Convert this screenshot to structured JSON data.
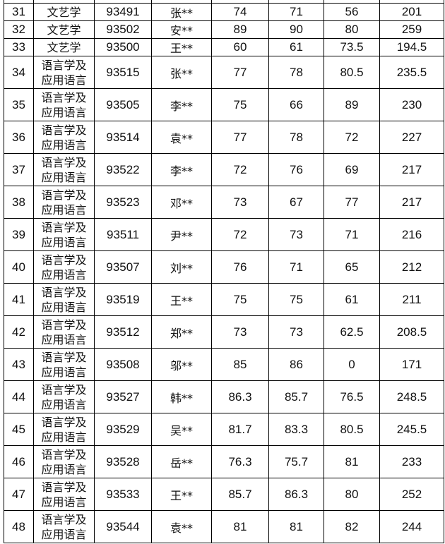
{
  "rows": [
    {
      "no": "31",
      "major": "文艺学",
      "id": "93491",
      "name": "张**",
      "s1": "74",
      "s2": "71",
      "s3": "56",
      "total": "201"
    },
    {
      "no": "32",
      "major": "文艺学",
      "id": "93502",
      "name": "安**",
      "s1": "89",
      "s2": "90",
      "s3": "80",
      "total": "259"
    },
    {
      "no": "33",
      "major": "文艺学",
      "id": "93500",
      "name": "王**",
      "s1": "60",
      "s2": "61",
      "s3": "73.5",
      "total": "194.5"
    },
    {
      "no": "34",
      "major": "语言学及应用语言",
      "id": "93515",
      "name": "张**",
      "s1": "77",
      "s2": "78",
      "s3": "80.5",
      "total": "235.5"
    },
    {
      "no": "35",
      "major": "语言学及应用语言",
      "id": "93505",
      "name": "李**",
      "s1": "75",
      "s2": "66",
      "s3": "89",
      "total": "230"
    },
    {
      "no": "36",
      "major": "语言学及应用语言",
      "id": "93514",
      "name": "袁**",
      "s1": "77",
      "s2": "78",
      "s3": "72",
      "total": "227"
    },
    {
      "no": "37",
      "major": "语言学及应用语言",
      "id": "93522",
      "name": "李**",
      "s1": "72",
      "s2": "76",
      "s3": "69",
      "total": "217"
    },
    {
      "no": "38",
      "major": "语言学及应用语言",
      "id": "93523",
      "name": "邓**",
      "s1": "73",
      "s2": "67",
      "s3": "77",
      "total": "217"
    },
    {
      "no": "39",
      "major": "语言学及应用语言",
      "id": "93511",
      "name": "尹**",
      "s1": "72",
      "s2": "73",
      "s3": "71",
      "total": "216"
    },
    {
      "no": "40",
      "major": "语言学及应用语言",
      "id": "93507",
      "name": "刘**",
      "s1": "76",
      "s2": "71",
      "s3": "65",
      "total": "212"
    },
    {
      "no": "41",
      "major": "语言学及应用语言",
      "id": "93519",
      "name": "王**",
      "s1": "75",
      "s2": "75",
      "s3": "61",
      "total": "211"
    },
    {
      "no": "42",
      "major": "语言学及应用语言",
      "id": "93512",
      "name": "郑**",
      "s1": "73",
      "s2": "73",
      "s3": "62.5",
      "total": "208.5"
    },
    {
      "no": "43",
      "major": "语言学及应用语言",
      "id": "93508",
      "name": "邬**",
      "s1": "85",
      "s2": "86",
      "s3": "0",
      "total": "171"
    },
    {
      "no": "44",
      "major": "语言学及应用语言",
      "id": "93527",
      "name": "韩**",
      "s1": "86.3",
      "s2": "85.7",
      "s3": "76.5",
      "total": "248.5"
    },
    {
      "no": "45",
      "major": "语言学及应用语言",
      "id": "93529",
      "name": "吴**",
      "s1": "81.7",
      "s2": "83.3",
      "s3": "80.5",
      "total": "245.5"
    },
    {
      "no": "46",
      "major": "语言学及应用语言",
      "id": "93528",
      "name": "岳**",
      "s1": "76.3",
      "s2": "75.7",
      "s3": "81",
      "total": "233"
    },
    {
      "no": "47",
      "major": "语言学及应用语言",
      "id": "93533",
      "name": "王**",
      "s1": "85.7",
      "s2": "86.3",
      "s3": "80",
      "total": "252"
    },
    {
      "no": "48",
      "major": "语言学及应用语言",
      "id": "93544",
      "name": "袁**",
      "s1": "81",
      "s2": "81",
      "s3": "82",
      "total": "244"
    }
  ]
}
